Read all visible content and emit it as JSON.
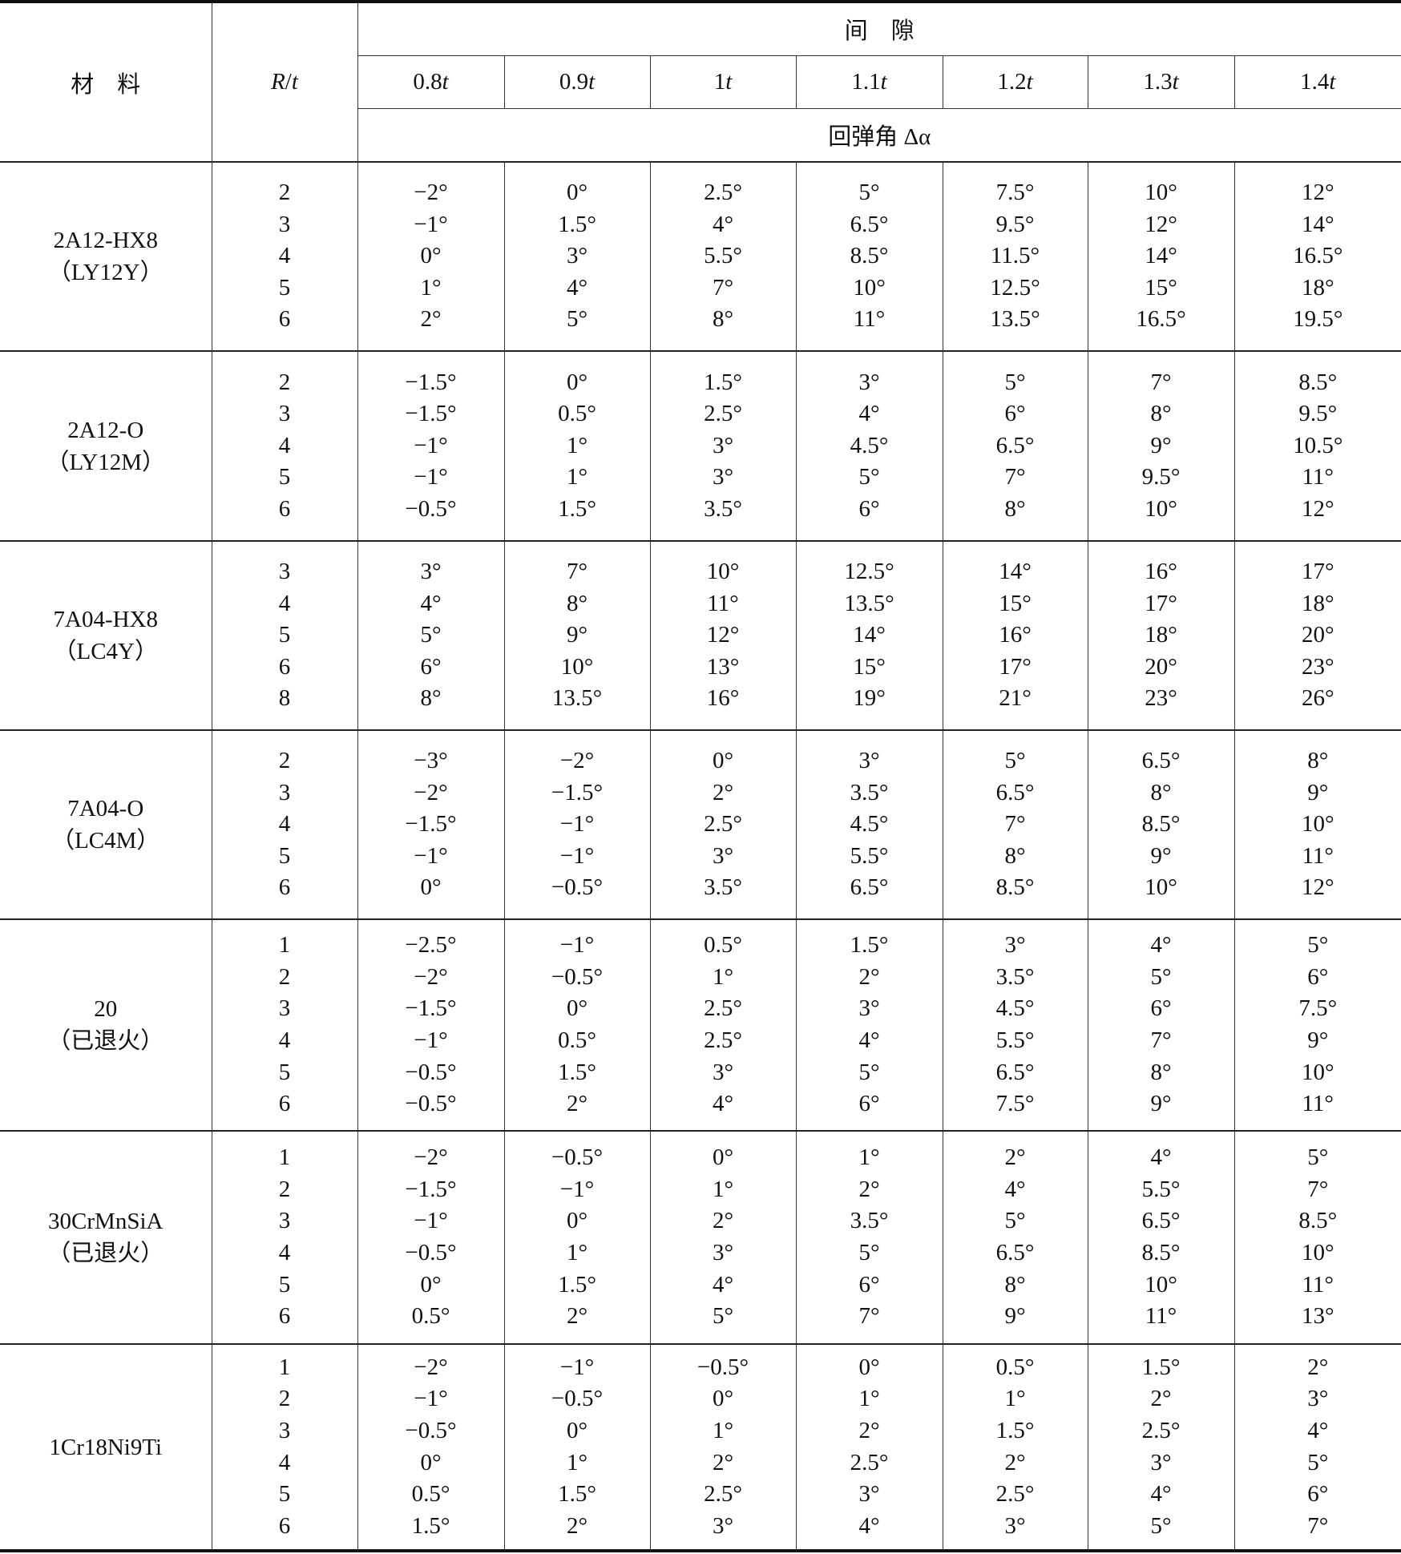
{
  "header": {
    "material": "材　料",
    "rt_r": "R",
    "rt_slash": "/",
    "rt_t": "t",
    "gap": "间　隙",
    "springback": "回弹角 Δα",
    "gaps": [
      {
        "num": "0.8",
        "unit": "t"
      },
      {
        "num": "0.9",
        "unit": "t"
      },
      {
        "num": "1",
        "unit": "t"
      },
      {
        "num": "1.1",
        "unit": "t"
      },
      {
        "num": "1.2",
        "unit": "t"
      },
      {
        "num": "1.3",
        "unit": "t"
      },
      {
        "num": "1.4",
        "unit": "t"
      }
    ]
  },
  "groups": [
    {
      "material": [
        "2A12-HX8",
        "（LY12Y）"
      ],
      "rt": [
        "2",
        "3",
        "4",
        "5",
        "6"
      ],
      "cols": [
        [
          "−2°",
          "−1°",
          "0°",
          "1°",
          "2°"
        ],
        [
          "0°",
          "1.5°",
          "3°",
          "4°",
          "5°"
        ],
        [
          "2.5°",
          "4°",
          "5.5°",
          "7°",
          "8°"
        ],
        [
          "5°",
          "6.5°",
          "8.5°",
          "10°",
          "11°"
        ],
        [
          "7.5°",
          "9.5°",
          "11.5°",
          "12.5°",
          "13.5°"
        ],
        [
          "10°",
          "12°",
          "14°",
          "15°",
          "16.5°"
        ],
        [
          "12°",
          "14°",
          "16.5°",
          "18°",
          "19.5°"
        ]
      ]
    },
    {
      "material": [
        "2A12-O",
        "（LY12M）"
      ],
      "rt": [
        "2",
        "3",
        "4",
        "5",
        "6"
      ],
      "cols": [
        [
          "−1.5°",
          "−1.5°",
          "−1°",
          "−1°",
          "−0.5°"
        ],
        [
          "0°",
          "0.5°",
          "1°",
          "1°",
          "1.5°"
        ],
        [
          "1.5°",
          "2.5°",
          "3°",
          "3°",
          "3.5°"
        ],
        [
          "3°",
          "4°",
          "4.5°",
          "5°",
          "6°"
        ],
        [
          "5°",
          "6°",
          "6.5°",
          "7°",
          "8°"
        ],
        [
          "7°",
          "8°",
          "9°",
          "9.5°",
          "10°"
        ],
        [
          "8.5°",
          "9.5°",
          "10.5°",
          "11°",
          "12°"
        ]
      ]
    },
    {
      "material": [
        "7A04-HX8",
        "（LC4Y）"
      ],
      "rt": [
        "3",
        "4",
        "5",
        "6",
        "8"
      ],
      "cols": [
        [
          "3°",
          "4°",
          "5°",
          "6°",
          "8°"
        ],
        [
          "7°",
          "8°",
          "9°",
          "10°",
          "13.5°"
        ],
        [
          "10°",
          "11°",
          "12°",
          "13°",
          "16°"
        ],
        [
          "12.5°",
          "13.5°",
          "14°",
          "15°",
          "19°"
        ],
        [
          "14°",
          "15°",
          "16°",
          "17°",
          "21°"
        ],
        [
          "16°",
          "17°",
          "18°",
          "20°",
          "23°"
        ],
        [
          "17°",
          "18°",
          "20°",
          "23°",
          "26°"
        ]
      ]
    },
    {
      "material": [
        "7A04-O",
        "（LC4M）"
      ],
      "rt": [
        "2",
        "3",
        "4",
        "5",
        "6"
      ],
      "cols": [
        [
          "−3°",
          "−2°",
          "−1.5°",
          "−1°",
          "0°"
        ],
        [
          "−2°",
          "−1.5°",
          "−1°",
          "−1°",
          "−0.5°"
        ],
        [
          "0°",
          "2°",
          "2.5°",
          "3°",
          "3.5°"
        ],
        [
          "3°",
          "3.5°",
          "4.5°",
          "5.5°",
          "6.5°"
        ],
        [
          "5°",
          "6.5°",
          "7°",
          "8°",
          "8.5°"
        ],
        [
          "6.5°",
          "8°",
          "8.5°",
          "9°",
          "10°"
        ],
        [
          "8°",
          "9°",
          "10°",
          "11°",
          "12°"
        ]
      ]
    },
    {
      "material": [
        "20",
        "（已退火）"
      ],
      "rt": [
        "1",
        "2",
        "3",
        "4",
        "5",
        "6"
      ],
      "cols": [
        [
          "−2.5°",
          "−2°",
          "−1.5°",
          "−1°",
          "−0.5°",
          "−0.5°"
        ],
        [
          "−1°",
          "−0.5°",
          "0°",
          "0.5°",
          "1.5°",
          "2°"
        ],
        [
          "0.5°",
          "1°",
          "2.5°",
          "2.5°",
          "3°",
          "4°"
        ],
        [
          "1.5°",
          "2°",
          "3°",
          "4°",
          "5°",
          "6°"
        ],
        [
          "3°",
          "3.5°",
          "4.5°",
          "5.5°",
          "6.5°",
          "7.5°"
        ],
        [
          "4°",
          "5°",
          "6°",
          "7°",
          "8°",
          "9°"
        ],
        [
          "5°",
          "6°",
          "7.5°",
          "9°",
          "10°",
          "11°"
        ]
      ]
    },
    {
      "material": [
        "30CrMnSiA",
        "（已退火）"
      ],
      "rt": [
        "1",
        "2",
        "3",
        "4",
        "5",
        "6"
      ],
      "cols": [
        [
          "−2°",
          "−1.5°",
          "−1°",
          "−0.5°",
          "0°",
          "0.5°"
        ],
        [
          "−0.5°",
          "−1°",
          "0°",
          "1°",
          "1.5°",
          "2°"
        ],
        [
          "0°",
          "1°",
          "2°",
          "3°",
          "4°",
          "5°"
        ],
        [
          "1°",
          "2°",
          "3.5°",
          "5°",
          "6°",
          "7°"
        ],
        [
          "2°",
          "4°",
          "5°",
          "6.5°",
          "8°",
          "9°"
        ],
        [
          "4°",
          "5.5°",
          "6.5°",
          "8.5°",
          "10°",
          "11°"
        ],
        [
          "5°",
          "7°",
          "8.5°",
          "10°",
          "11°",
          "13°"
        ]
      ]
    },
    {
      "material": [
        "1Cr18Ni9Ti"
      ],
      "rt": [
        "1",
        "2",
        "3",
        "4",
        "5",
        "6"
      ],
      "cols": [
        [
          "−2°",
          "−1°",
          "−0.5°",
          "0°",
          "0.5°",
          "1.5°"
        ],
        [
          "−1°",
          "−0.5°",
          "0°",
          "1°",
          "1.5°",
          "2°"
        ],
        [
          "−0.5°",
          "0°",
          "1°",
          "2°",
          "2.5°",
          "3°"
        ],
        [
          "0°",
          "1°",
          "2°",
          "2.5°",
          "3°",
          "4°"
        ],
        [
          "0.5°",
          "1°",
          "1.5°",
          "2°",
          "2.5°",
          "3°"
        ],
        [
          "1.5°",
          "2°",
          "2.5°",
          "3°",
          "4°",
          "5°"
        ],
        [
          "2°",
          "3°",
          "4°",
          "5°",
          "6°",
          "7°"
        ]
      ]
    }
  ]
}
